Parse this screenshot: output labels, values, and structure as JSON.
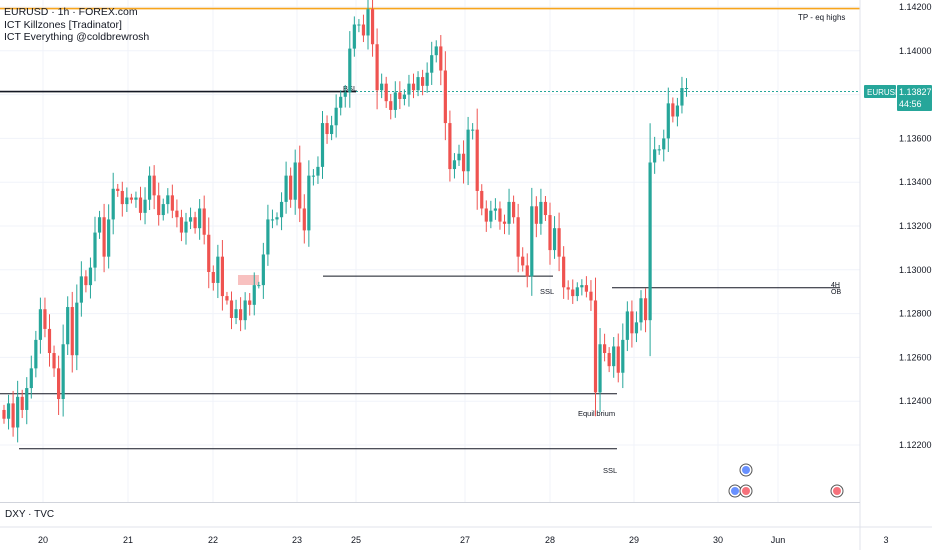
{
  "legend": {
    "symbol_line": "EURUSD · 1h · FOREX.com",
    "indicator_1": "ICT Killzones [Tradinator]",
    "indicator_2": "ICT Everything @coldbrewrosh"
  },
  "pane2_label": "DXY · TVC",
  "price_badge": {
    "symbol": "EURUSD",
    "price": "1.13827",
    "countdown": "44:56",
    "color": "#26a69a"
  },
  "colors": {
    "up": "#26a69a",
    "down": "#ef5350",
    "tp_line": "#f7a51c",
    "level_line": "#131722",
    "fvg_box": "#f7b6b5"
  },
  "annotations": {
    "tp": "TP - eq highs",
    "bsl": "BSL",
    "ssl_1": "SSL",
    "ssl_2": "SSL",
    "ob_top": "4H",
    "ob_bottom": "OB",
    "equilibrium": "Equilibrium"
  },
  "chart_data": {
    "type": "candlestick",
    "y_axis": {
      "min": 1.12,
      "max": 1.142,
      "ticks": [
        "1.14200",
        "1.14000",
        "1.13800",
        "1.13600",
        "1.13400",
        "1.13200",
        "1.13000",
        "1.12800",
        "1.12600",
        "1.12400",
        "1.12200"
      ]
    },
    "x_axis": {
      "labels": [
        "20",
        "21",
        "22",
        "23",
        "25",
        "27",
        "28",
        "29",
        "30",
        "Jun",
        "3"
      ]
    },
    "levels": [
      {
        "name": "TP - eq highs",
        "price": 1.14193
      },
      {
        "name": "BSL",
        "price": 1.13814
      },
      {
        "name": "SSL (upper)",
        "price": 1.12971
      },
      {
        "name": "4H OB",
        "price": 1.12918
      },
      {
        "name": "Equilibrium",
        "price": 1.12434
      },
      {
        "name": "SSL (lower)",
        "price": 1.12183
      }
    ],
    "last_price": 1.13827,
    "series": [
      {
        "close": [
          1.1232,
          1.1239,
          1.1228,
          1.1242,
          1.1236,
          1.1246,
          1.1255,
          1.1268,
          1.1282,
          1.1273,
          1.1262,
          1.1255,
          1.1241,
          1.1266,
          1.1283,
          1.1261,
          1.1285,
          1.1297,
          1.1293,
          1.1301,
          1.1317,
          1.1324,
          1.1306,
          1.1323,
          1.1337,
          1.1336,
          1.133,
          1.1333,
          1.1332,
          1.1333,
          1.1326,
          1.1332,
          1.1343,
          1.1334,
          1.1325,
          1.133,
          1.1334,
          1.1327,
          1.1324,
          1.1317,
          1.1322,
          1.1324,
          1.1319,
          1.1328,
          1.1316,
          1.1299,
          1.1294,
          1.1306,
          1.1288,
          1.1286,
          1.1278,
          1.1282,
          1.1277,
          1.1286,
          1.1284,
          1.1293,
          1.1293,
          1.1307,
          1.1323,
          1.1323,
          1.1324,
          1.1331,
          1.1343,
          1.1332,
          1.1349,
          1.1328,
          1.1318,
          1.1343,
          1.1343,
          1.1347,
          1.1367,
          1.1362,
          1.1366,
          1.1374,
          1.1379,
          1.1381,
          1.1401,
          1.1412,
          1.1412,
          1.1407,
          1.1419,
          1.1403,
          1.1382,
          1.1385,
          1.1377,
          1.1373,
          1.1381,
          1.1378,
          1.138,
          1.1385,
          1.1382,
          1.1388,
          1.1384,
          1.139,
          1.1398,
          1.1402,
          1.1391,
          1.1367,
          1.1346,
          1.135,
          1.1353,
          1.1345,
          1.1364,
          1.1364,
          1.1336,
          1.1328,
          1.1322,
          1.1327,
          1.1328,
          1.1322,
          1.1321,
          1.1331,
          1.1324,
          1.1306,
          1.1302,
          1.1297,
          1.1329,
          1.1321,
          1.1331,
          1.1325,
          1.1309,
          1.1319,
          1.1306,
          1.1292,
          1.1291,
          1.1288,
          1.1292,
          1.1293,
          1.129,
          1.1286,
          1.1244,
          1.1266,
          1.1262,
          1.1256,
          1.1265,
          1.1253,
          1.1268,
          1.1281,
          1.1271,
          1.1276,
          1.1287,
          1.1277,
          1.1349,
          1.1355,
          1.1355,
          1.136,
          1.1376,
          1.137,
          1.1375,
          1.1383,
          1.1383
        ]
      }
    ]
  }
}
